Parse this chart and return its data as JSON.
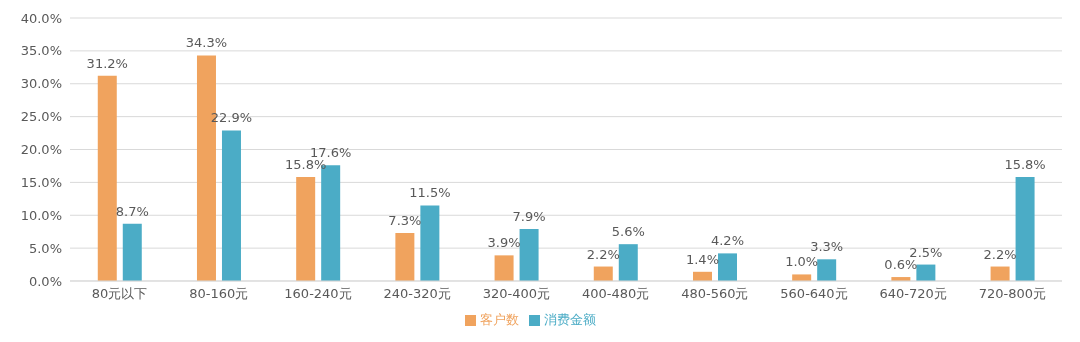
{
  "chart_data": {
    "type": "bar",
    "categories": [
      "80元以下",
      "80-160元",
      "160-240元",
      "240-320元",
      "320-400元",
      "400-480元",
      "480-560元",
      "560-640元",
      "640-720元",
      "720-800元"
    ],
    "series": [
      {
        "name": "客户数",
        "color": "#f0a35e",
        "values": [
          31.2,
          34.3,
          15.8,
          7.3,
          3.9,
          2.2,
          1.4,
          1.0,
          0.6,
          2.2
        ],
        "value_labels": [
          "31.2%",
          "34.3%",
          "15.8%",
          "7.3%",
          "3.9%",
          "2.2%",
          "1.4%",
          "1.0%",
          "0.6%",
          "2.2%"
        ]
      },
      {
        "name": "消费金额",
        "color": "#4bacc6",
        "values": [
          8.7,
          22.9,
          17.6,
          11.5,
          7.9,
          5.6,
          4.2,
          3.3,
          2.5,
          15.8
        ],
        "value_labels": [
          "8.7%",
          "22.9%",
          "17.6%",
          "11.5%",
          "7.9%",
          "5.6%",
          "4.2%",
          "3.3%",
          "2.5%",
          "15.8%"
        ]
      }
    ],
    "ylim": [
      0,
      40
    ],
    "yticks": [
      {
        "value": 0,
        "label": "0.0%"
      },
      {
        "value": 5,
        "label": "5.0%"
      },
      {
        "value": 10,
        "label": "10.0%"
      },
      {
        "value": 15,
        "label": "15.0%"
      },
      {
        "value": 20,
        "label": "20.0%"
      },
      {
        "value": 25,
        "label": "25.0%"
      },
      {
        "value": 30,
        "label": "30.0%"
      },
      {
        "value": 35,
        "label": "35.0%"
      },
      {
        "value": 40,
        "label": "40.0%"
      }
    ],
    "grid": "y",
    "legend": "bottom"
  }
}
